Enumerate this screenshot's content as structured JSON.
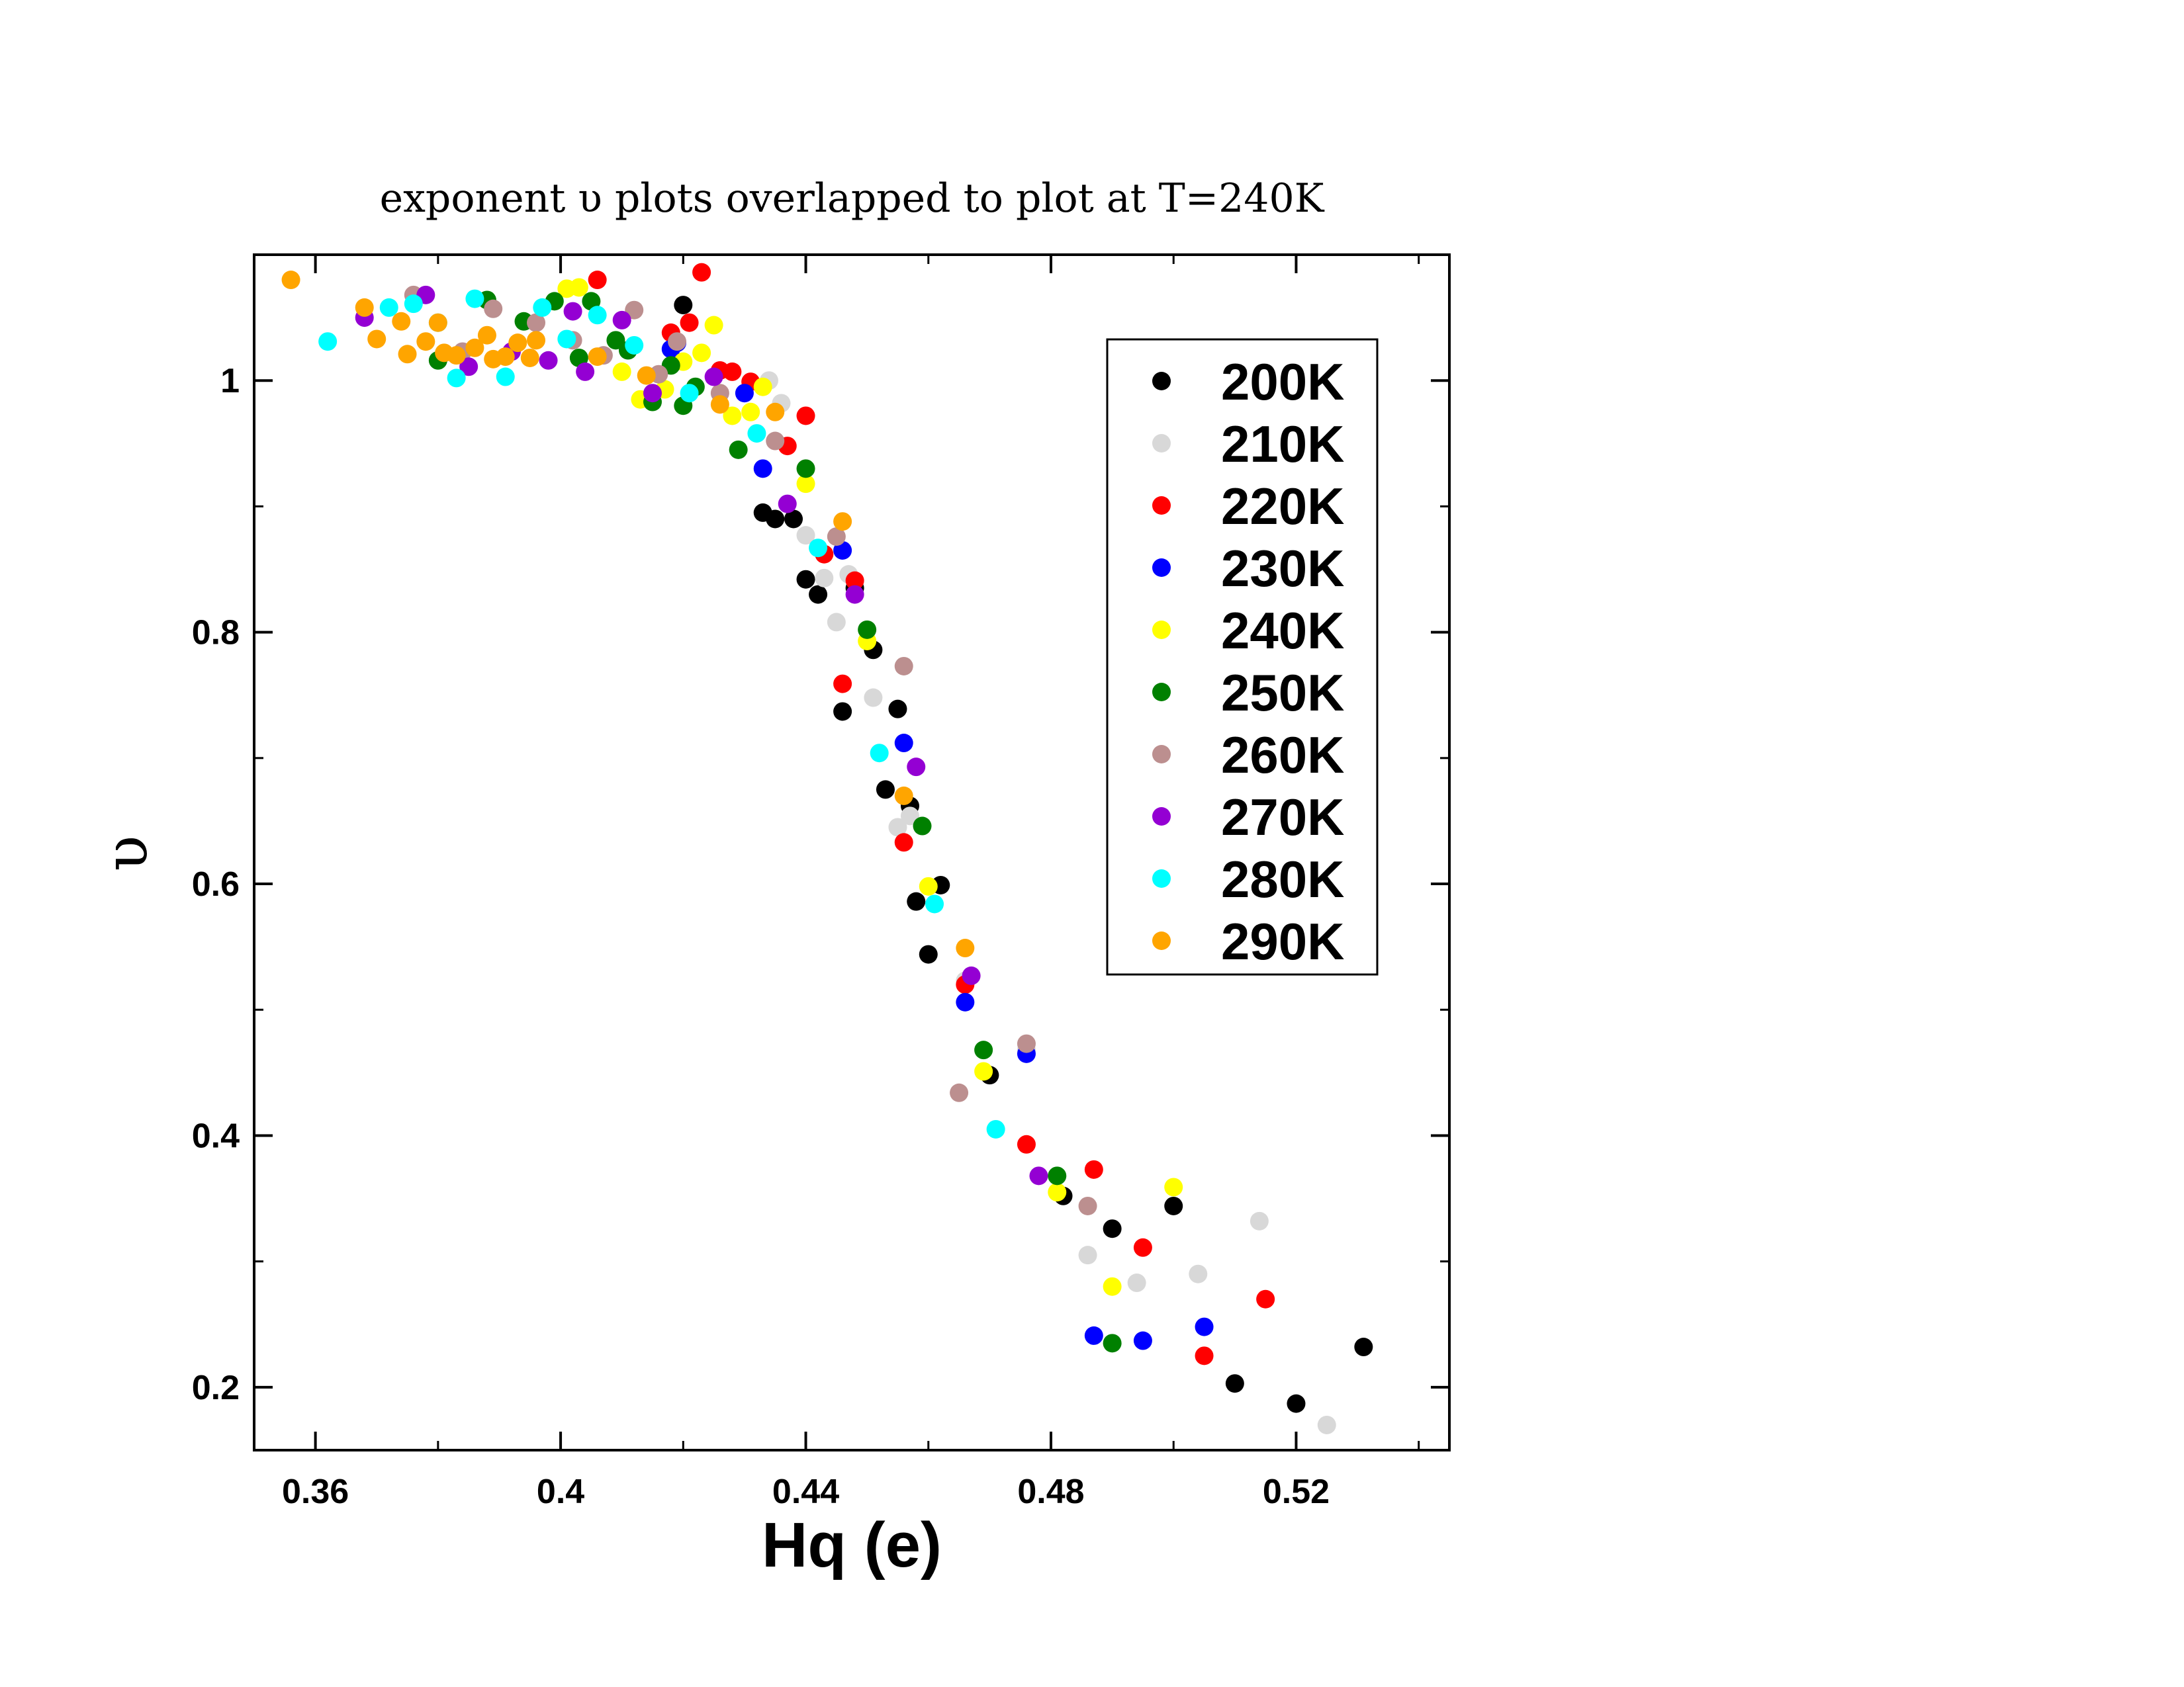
{
  "chart_data": {
    "type": "scatter",
    "title": "exponent υ plots overlapped to plot at T=240K",
    "xlabel": "Hq (e)",
    "ylabel": "υ",
    "xlim": [
      0.35,
      0.545
    ],
    "ylim": [
      0.15,
      1.1
    ],
    "xticks": [
      "0.36",
      "0.4",
      "0.44",
      "0.48",
      "0.52"
    ],
    "yticks": [
      "0.2",
      "0.4",
      "0.6",
      "0.8",
      "1"
    ],
    "grid": false,
    "legend_position": "top-right",
    "series": [
      {
        "name": "200K",
        "color": "#000000",
        "points": [
          [
            0.42,
            1.06
          ],
          [
            0.435,
            0.89
          ],
          [
            0.433,
            0.895
          ],
          [
            0.438,
            0.89
          ],
          [
            0.44,
            0.842
          ],
          [
            0.442,
            0.83
          ],
          [
            0.446,
            0.737
          ],
          [
            0.448,
            0.835
          ],
          [
            0.451,
            0.786
          ],
          [
            0.453,
            0.675
          ],
          [
            0.455,
            0.739
          ],
          [
            0.457,
            0.662
          ],
          [
            0.458,
            0.586
          ],
          [
            0.46,
            0.544
          ],
          [
            0.462,
            0.599
          ],
          [
            0.47,
            0.448
          ],
          [
            0.482,
            0.352
          ],
          [
            0.49,
            0.326
          ],
          [
            0.5,
            0.344
          ],
          [
            0.51,
            0.203
          ],
          [
            0.52,
            0.187
          ],
          [
            0.531,
            0.232
          ]
        ]
      },
      {
        "name": "210K",
        "color": "#d8d8d8",
        "points": [
          [
            0.434,
            1.0
          ],
          [
            0.436,
            0.982
          ],
          [
            0.44,
            0.877
          ],
          [
            0.443,
            0.843
          ],
          [
            0.445,
            0.808
          ],
          [
            0.447,
            0.846
          ],
          [
            0.451,
            0.748
          ],
          [
            0.455,
            0.645
          ],
          [
            0.457,
            0.654
          ],
          [
            0.466,
            0.523
          ],
          [
            0.476,
            0.468
          ],
          [
            0.486,
            0.305
          ],
          [
            0.494,
            0.283
          ],
          [
            0.504,
            0.29
          ],
          [
            0.514,
            0.332
          ],
          [
            0.525,
            0.17
          ]
        ]
      },
      {
        "name": "220K",
        "color": "#ff0000",
        "points": [
          [
            0.406,
            1.08
          ],
          [
            0.423,
            1.086
          ],
          [
            0.421,
            1.046
          ],
          [
            0.418,
            1.038
          ],
          [
            0.426,
            1.008
          ],
          [
            0.428,
            1.007
          ],
          [
            0.431,
            0.999
          ],
          [
            0.437,
            0.948
          ],
          [
            0.44,
            0.972
          ],
          [
            0.443,
            0.862
          ],
          [
            0.446,
            0.759
          ],
          [
            0.448,
            0.841
          ],
          [
            0.456,
            0.633
          ],
          [
            0.466,
            0.52
          ],
          [
            0.476,
            0.393
          ],
          [
            0.487,
            0.373
          ],
          [
            0.495,
            0.311
          ],
          [
            0.505,
            0.225
          ],
          [
            0.515,
            0.27
          ]
        ]
      },
      {
        "name": "230K",
        "color": "#0000ff",
        "points": [
          [
            0.418,
            1.025
          ],
          [
            0.419,
            1.03
          ],
          [
            0.43,
            0.99
          ],
          [
            0.433,
            0.93
          ],
          [
            0.446,
            0.865
          ],
          [
            0.456,
            0.712
          ],
          [
            0.466,
            0.506
          ],
          [
            0.476,
            0.465
          ],
          [
            0.487,
            0.241
          ],
          [
            0.495,
            0.237
          ],
          [
            0.505,
            0.248
          ]
        ]
      },
      {
        "name": "240K",
        "color": "#ffff00",
        "points": [
          [
            0.401,
            1.073
          ],
          [
            0.403,
            1.074
          ],
          [
            0.41,
            1.007
          ],
          [
            0.413,
            0.985
          ],
          [
            0.417,
            0.993
          ],
          [
            0.42,
            1.015
          ],
          [
            0.423,
            1.022
          ],
          [
            0.425,
            1.044
          ],
          [
            0.428,
            0.972
          ],
          [
            0.431,
            0.975
          ],
          [
            0.433,
            0.995
          ],
          [
            0.44,
            0.918
          ],
          [
            0.45,
            0.793
          ],
          [
            0.46,
            0.598
          ],
          [
            0.469,
            0.451
          ],
          [
            0.481,
            0.355
          ],
          [
            0.49,
            0.28
          ],
          [
            0.5,
            0.359
          ]
        ]
      },
      {
        "name": "250K",
        "color": "#008000",
        "points": [
          [
            0.38,
            1.016
          ],
          [
            0.388,
            1.064
          ],
          [
            0.394,
            1.047
          ],
          [
            0.399,
            1.063
          ],
          [
            0.403,
            1.018
          ],
          [
            0.405,
            1.063
          ],
          [
            0.409,
            1.032
          ],
          [
            0.411,
            1.024
          ],
          [
            0.415,
            0.983
          ],
          [
            0.418,
            1.012
          ],
          [
            0.42,
            0.98
          ],
          [
            0.422,
            0.995
          ],
          [
            0.429,
            0.945
          ],
          [
            0.44,
            0.93
          ],
          [
            0.45,
            0.802
          ],
          [
            0.459,
            0.646
          ],
          [
            0.469,
            0.468
          ],
          [
            0.481,
            0.368
          ],
          [
            0.49,
            0.235
          ]
        ]
      },
      {
        "name": "260K",
        "color": "#bc8f8f",
        "points": [
          [
            0.376,
            1.068
          ],
          [
            0.384,
            1.023
          ],
          [
            0.389,
            1.057
          ],
          [
            0.396,
            1.046
          ],
          [
            0.402,
            1.032
          ],
          [
            0.407,
            1.02
          ],
          [
            0.412,
            1.056
          ],
          [
            0.416,
            1.005
          ],
          [
            0.419,
            1.031
          ],
          [
            0.426,
            0.99
          ],
          [
            0.435,
            0.952
          ],
          [
            0.445,
            0.876
          ],
          [
            0.456,
            0.773
          ],
          [
            0.465,
            0.434
          ],
          [
            0.476,
            0.473
          ],
          [
            0.486,
            0.344
          ]
        ]
      },
      {
        "name": "270K",
        "color": "#9400d3",
        "points": [
          [
            0.368,
            1.05
          ],
          [
            0.378,
            1.068
          ],
          [
            0.385,
            1.011
          ],
          [
            0.392,
            1.023
          ],
          [
            0.398,
            1.016
          ],
          [
            0.402,
            1.055
          ],
          [
            0.404,
            1.007
          ],
          [
            0.41,
            1.048
          ],
          [
            0.415,
            0.99
          ],
          [
            0.425,
            1.003
          ],
          [
            0.437,
            0.902
          ],
          [
            0.448,
            0.83
          ],
          [
            0.458,
            0.693
          ],
          [
            0.467,
            0.527
          ],
          [
            0.478,
            0.368
          ]
        ]
      },
      {
        "name": "280K",
        "color": "#00ffff",
        "points": [
          [
            0.362,
            1.031
          ],
          [
            0.372,
            1.058
          ],
          [
            0.376,
            1.061
          ],
          [
            0.38,
            1.046
          ],
          [
            0.383,
            1.002
          ],
          [
            0.386,
            1.065
          ],
          [
            0.391,
            1.003
          ],
          [
            0.397,
            1.058
          ],
          [
            0.401,
            1.033
          ],
          [
            0.406,
            1.052
          ],
          [
            0.412,
            1.028
          ],
          [
            0.421,
            0.99
          ],
          [
            0.432,
            0.958
          ],
          [
            0.442,
            0.867
          ],
          [
            0.452,
            0.704
          ],
          [
            0.461,
            0.584
          ],
          [
            0.471,
            0.405
          ]
        ]
      },
      {
        "name": "290K",
        "color": "#ffa500",
        "points": [
          [
            0.356,
            1.08
          ],
          [
            0.368,
            1.058
          ],
          [
            0.37,
            1.033
          ],
          [
            0.374,
            1.047
          ],
          [
            0.375,
            1.021
          ],
          [
            0.378,
            1.031
          ],
          [
            0.38,
            1.046
          ],
          [
            0.381,
            1.022
          ],
          [
            0.383,
            1.02
          ],
          [
            0.386,
            1.026
          ],
          [
            0.388,
            1.036
          ],
          [
            0.389,
            1.017
          ],
          [
            0.391,
            1.019
          ],
          [
            0.393,
            1.03
          ],
          [
            0.395,
            1.018
          ],
          [
            0.396,
            1.032
          ],
          [
            0.406,
            1.019
          ],
          [
            0.414,
            1.004
          ],
          [
            0.426,
            0.981
          ],
          [
            0.435,
            0.975
          ],
          [
            0.446,
            0.888
          ],
          [
            0.456,
            0.67
          ],
          [
            0.466,
            0.549
          ]
        ]
      }
    ]
  }
}
